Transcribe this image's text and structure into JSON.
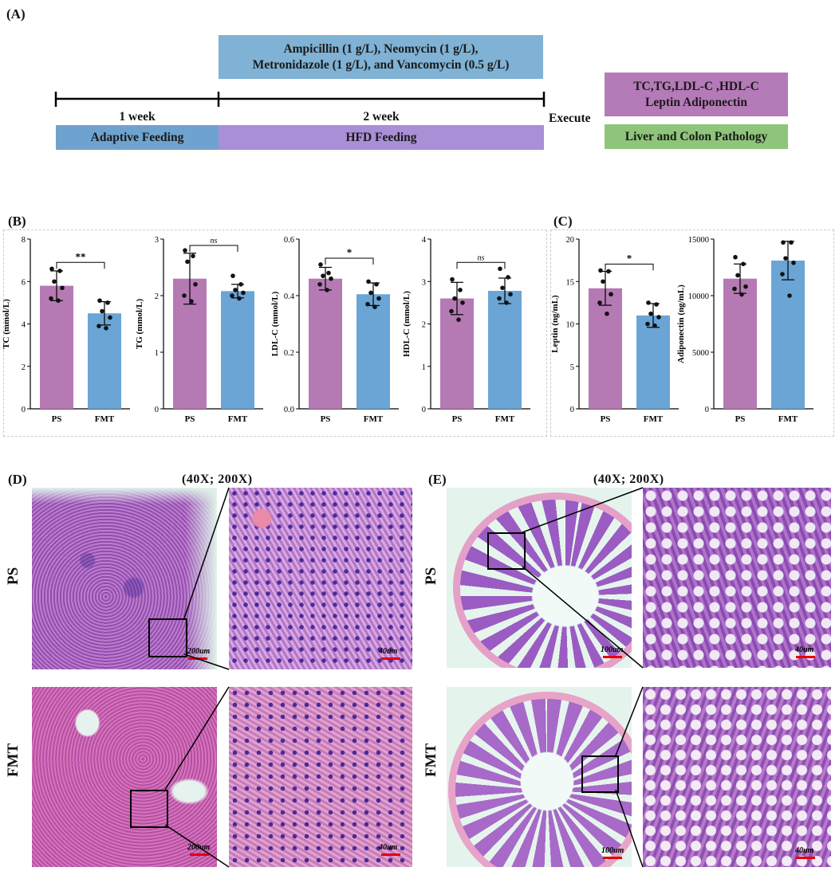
{
  "panel_A": {
    "label": "(A)",
    "antibiotics_line1": "Ampicillin (1 g/L), Neomycin (1 g/L),",
    "antibiotics_line2": "Metronidazole (1 g/L), and Vancomycin (0.5 g/L)",
    "week1": "1 week",
    "week2": "2 week",
    "adaptive": "Adaptive Feeding",
    "hfd": "HFD Feeding",
    "execute": "Execute",
    "measures_line1": "TC,TG,LDL-C ,HDL-C",
    "measures_line2": "Leptin  Adiponectin",
    "pathology": "Liver and Colon Pathology",
    "colors": {
      "antibiotic": "#7fb2d4",
      "adaptive": "#6fa3cf",
      "hfd": "#a98fd6",
      "measures": "#b57ab8",
      "pathology": "#8ec57a"
    }
  },
  "panel_B": {
    "label": "(B)"
  },
  "panel_C": {
    "label": "(C)"
  },
  "chart_colors": {
    "PS": "#b57ab3",
    "FMT": "#6aa5d6"
  },
  "chart_data": [
    {
      "id": "tc",
      "type": "bar",
      "panel": "B",
      "categories": [
        "PS",
        "FMT"
      ],
      "values": [
        5.8,
        4.5
      ],
      "errors": [
        0.7,
        0.55
      ],
      "points": [
        [
          6.6,
          6.5,
          6.0,
          5.7,
          5.2,
          5.1
        ],
        [
          5.1,
          5.0,
          4.6,
          4.3,
          3.9,
          3.8
        ]
      ],
      "ylabel": "TC (mmol/L)",
      "ylim": [
        0,
        8
      ],
      "yticks": [
        "0",
        "2",
        "4",
        "6",
        "8"
      ],
      "significance": "**"
    },
    {
      "id": "tg",
      "type": "bar",
      "panel": "B",
      "categories": [
        "PS",
        "FMT"
      ],
      "values": [
        2.3,
        2.08
      ],
      "errors": [
        0.45,
        0.12
      ],
      "points": [
        [
          2.8,
          2.7,
          2.6,
          2.2,
          2.0,
          1.9
        ],
        [
          2.35,
          2.2,
          2.1,
          2.05,
          2.0,
          1.95
        ]
      ],
      "ylabel": "TG (mmol/L)",
      "ylim": [
        0,
        3
      ],
      "yticks": [
        "0",
        "1",
        "2",
        "3"
      ],
      "significance": "ns"
    },
    {
      "id": "ldl",
      "type": "bar",
      "panel": "B",
      "categories": [
        "PS",
        "FMT"
      ],
      "values": [
        0.46,
        0.405
      ],
      "errors": [
        0.04,
        0.04
      ],
      "points": [
        [
          0.51,
          0.48,
          0.47,
          0.46,
          0.44,
          0.42
        ],
        [
          0.45,
          0.44,
          0.41,
          0.39,
          0.37,
          0.36
        ]
      ],
      "ylabel": "LDL-C (mmol/L)",
      "ylim": [
        0,
        0.6
      ],
      "yticks": [
        "0.0",
        "0.2",
        "0.4",
        "0.6"
      ],
      "significance": "*"
    },
    {
      "id": "hdl",
      "type": "bar",
      "panel": "B",
      "categories": [
        "PS",
        "FMT"
      ],
      "values": [
        2.6,
        2.78
      ],
      "errors": [
        0.38,
        0.3
      ],
      "points": [
        [
          3.05,
          2.8,
          2.6,
          2.5,
          2.3,
          2.1
        ],
        [
          3.3,
          3.1,
          2.85,
          2.7,
          2.6,
          2.5
        ]
      ],
      "ylabel": "HDL-C (mmol/L)",
      "ylim": [
        0,
        4
      ],
      "yticks": [
        "0",
        "1",
        "2",
        "3",
        "4"
      ],
      "significance": "ns"
    },
    {
      "id": "leptin",
      "type": "bar",
      "panel": "C",
      "categories": [
        "PS",
        "FMT"
      ],
      "values": [
        14.2,
        11.0
      ],
      "errors": [
        2.0,
        1.4
      ],
      "points": [
        [
          16.3,
          16.2,
          15.0,
          13.5,
          12.5,
          11.2
        ],
        [
          12.5,
          12.3,
          11.2,
          10.8,
          10.0,
          9.8
        ]
      ],
      "ylabel": "Leptin (ng/mL)",
      "ylim": [
        0,
        20
      ],
      "yticks": [
        "0",
        "5",
        "10",
        "15",
        "20"
      ],
      "significance": "*"
    },
    {
      "id": "adipo",
      "type": "bar",
      "panel": "C",
      "categories": [
        "PS",
        "FMT"
      ],
      "values": [
        11500,
        13100
      ],
      "errors": [
        1300,
        1700
      ],
      "points": [
        [
          13400,
          12800,
          11800,
          10800,
          10600,
          10100
        ],
        [
          14700,
          14700,
          13300,
          12900,
          11900,
          10000
        ]
      ],
      "ylabel": "Adiponectin (ng/mL)",
      "ylim": [
        0,
        15000
      ],
      "yticks": [
        "0",
        "5000",
        "10000",
        "15000"
      ],
      "significance": ""
    }
  ],
  "panel_D": {
    "label": "(D)",
    "magnification": "(40X; 200X)",
    "row1": "PS",
    "row2": "FMT",
    "scale_low": "200um",
    "scale_high": "40um"
  },
  "panel_E": {
    "label": "(E)",
    "magnification": "(40X; 200X)",
    "row1": "PS",
    "row2": "FMT",
    "scale_low": "100um",
    "scale_high": "40um"
  }
}
